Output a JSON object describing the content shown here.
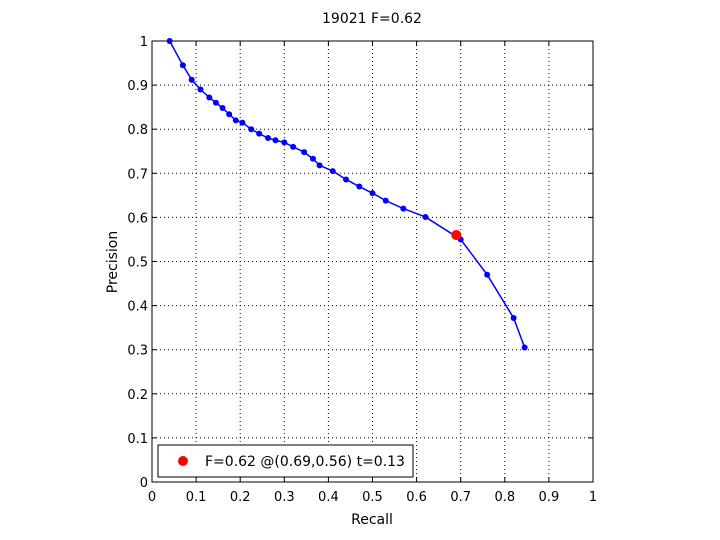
{
  "chart_data": {
    "type": "line",
    "title": "19021 F=0.62",
    "xlabel": "Recall",
    "ylabel": "Precision",
    "xlim": [
      0,
      1
    ],
    "ylim": [
      0,
      1
    ],
    "xticks": [
      0,
      0.1,
      0.2,
      0.3,
      0.4,
      0.5,
      0.6,
      0.7,
      0.8,
      0.9,
      1
    ],
    "yticks": [
      0,
      0.1,
      0.2,
      0.3,
      0.4,
      0.5,
      0.6,
      0.7,
      0.8,
      0.9,
      1
    ],
    "xtick_labels": [
      "0",
      "0.1",
      "0.2",
      "0.3",
      "0.4",
      "0.5",
      "0.6",
      "0.7",
      "0.8",
      "0.9",
      "1"
    ],
    "ytick_labels": [
      "0",
      "0.1",
      "0.2",
      "0.3",
      "0.4",
      "0.5",
      "0.6",
      "0.7",
      "0.8",
      "0.9",
      "1"
    ],
    "grid": true,
    "grid_style": "dotted",
    "legend_position": "bottom-left",
    "series": [
      {
        "color": "#0000ff",
        "marker": "dot",
        "x": [
          0.04,
          0.07,
          0.09,
          0.11,
          0.13,
          0.145,
          0.16,
          0.175,
          0.19,
          0.205,
          0.225,
          0.243,
          0.263,
          0.28,
          0.3,
          0.32,
          0.345,
          0.365,
          0.38,
          0.41,
          0.44,
          0.47,
          0.5,
          0.53,
          0.57,
          0.62,
          0.7,
          0.76,
          0.82,
          0.845
        ],
        "y": [
          1.0,
          0.945,
          0.912,
          0.89,
          0.872,
          0.86,
          0.848,
          0.834,
          0.82,
          0.815,
          0.8,
          0.79,
          0.78,
          0.775,
          0.77,
          0.76,
          0.748,
          0.733,
          0.718,
          0.705,
          0.686,
          0.67,
          0.655,
          0.638,
          0.62,
          0.601,
          0.55,
          0.47,
          0.372,
          0.305
        ]
      }
    ],
    "best_point": {
      "x": 0.69,
      "y": 0.56,
      "color": "#ff0000"
    },
    "legend": {
      "label": "F=0.62 @(0.69,0.56) t=0.13",
      "marker_color": "#ff0000"
    }
  }
}
